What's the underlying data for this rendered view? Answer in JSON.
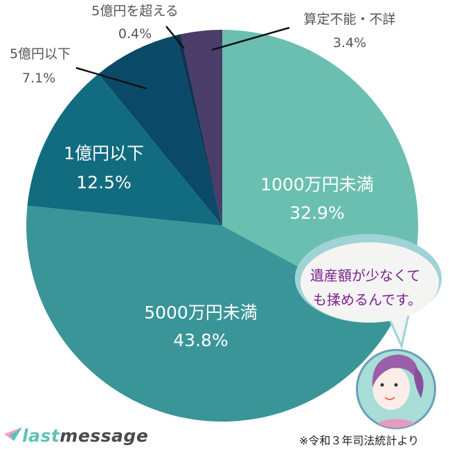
{
  "chart_data": {
    "type": "pie",
    "start": "top",
    "direction": "clockwise",
    "slices": [
      {
        "label": "1000万円未満",
        "value": 32.9,
        "display": "32.9%",
        "color": "#6bbfb0",
        "label_position": "inside"
      },
      {
        "label": "5000万円未満",
        "value": 43.8,
        "display": "43.8%",
        "color": "#3a9599",
        "label_position": "inside"
      },
      {
        "label": "1億円以下",
        "value": 12.5,
        "display": "12.5%",
        "color": "#126c80",
        "label_position": "inside"
      },
      {
        "label": "5億円以下",
        "value": 7.1,
        "display": "7.1%",
        "color": "#0b4968",
        "label_position": "outside"
      },
      {
        "label": "5億円を超える",
        "value": 0.4,
        "display": "0.4%",
        "color": "#103553",
        "label_position": "outside"
      },
      {
        "label": "算定不能・不詳",
        "value": 3.4,
        "display": "3.4%",
        "color": "#4a3d69",
        "label_position": "outside"
      }
    ]
  },
  "bubble": {
    "line1": "遺産額が少なくて",
    "line2": "も揉めるんです。",
    "text_color": "#7a2090"
  },
  "logo": {
    "part1": "last",
    "part2": "message"
  },
  "source": "※令和３年司法統計より"
}
